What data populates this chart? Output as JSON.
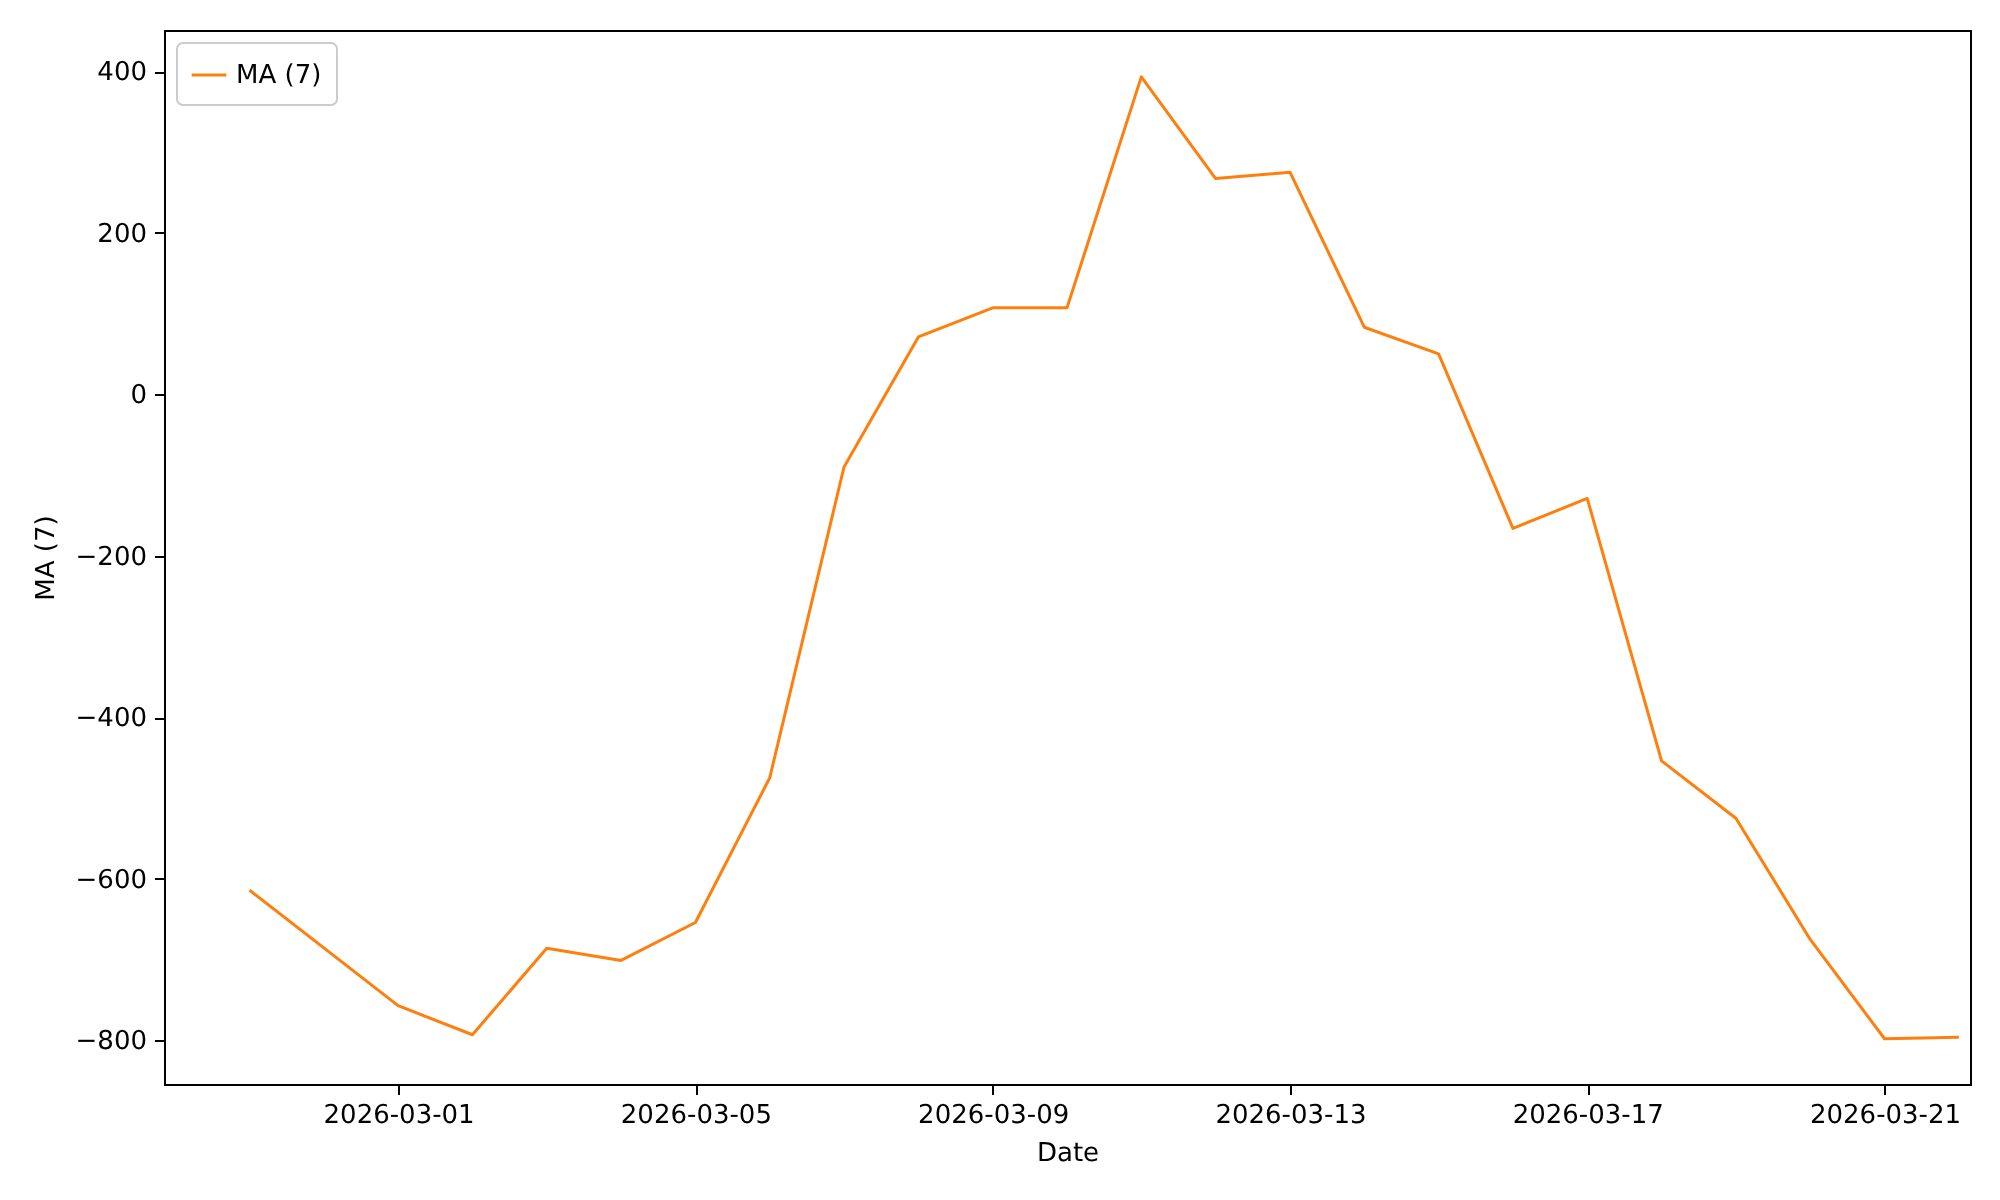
{
  "chart_data": {
    "type": "line",
    "xlabel": "Date",
    "ylabel": "MA (7)",
    "x": [
      "2026-02-27",
      "2026-03-01",
      "2026-03-02",
      "2026-03-03",
      "2026-03-04",
      "2026-03-05",
      "2026-03-06",
      "2026-03-07",
      "2026-03-08",
      "2026-03-09",
      "2026-03-10",
      "2026-03-11",
      "2026-03-12",
      "2026-03-13",
      "2026-03-14",
      "2026-03-15",
      "2026-03-16",
      "2026-03-17",
      "2026-03-18",
      "2026-03-19",
      "2026-03-20",
      "2026-03-21",
      "2026-03-22"
    ],
    "series": [
      {
        "name": "MA (7)",
        "color": "#ff7f0e",
        "values": [
          -614,
          -757,
          -793,
          -686,
          -701,
          -654,
          -475,
          -90,
          71,
          107,
          107,
          393,
          267,
          275,
          83,
          50,
          -166,
          -129,
          -454,
          -525,
          -675,
          -798,
          -796
        ]
      }
    ],
    "xlim": [
      "2026-02-25T20:24",
      "2026-03-22T03:36"
    ],
    "xticks": [
      "2026-03-01",
      "2026-03-05",
      "2026-03-09",
      "2026-03-13",
      "2026-03-17",
      "2026-03-21"
    ],
    "ylim": [
      -854,
      451
    ],
    "yticks": [
      -800,
      -600,
      -400,
      -200,
      0,
      200,
      400
    ],
    "legend": "top left",
    "grid": false,
    "line_style": "solid"
  }
}
